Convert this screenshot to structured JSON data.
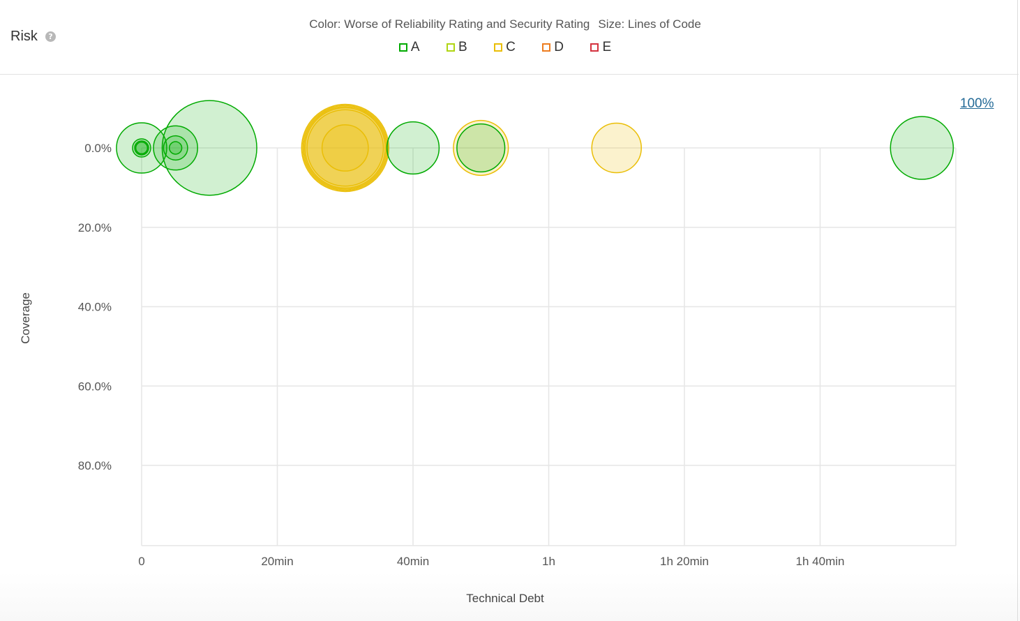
{
  "header": {
    "title": "Risk",
    "help_icon": "question-circle-icon",
    "color_label": "Color: Worse of Reliability Rating and Security Rating",
    "size_label": "Size: Lines of Code"
  },
  "legend": [
    {
      "label": "A",
      "color": "#00aa00",
      "fill": "#b0d513"
    },
    {
      "label": "B",
      "color": "#b0d513",
      "fill": "#b0d513"
    },
    {
      "label": "C",
      "color": "#eabe06",
      "fill": "#eabe06"
    },
    {
      "label": "D",
      "color": "#ed7d20",
      "fill": "#ed7d20"
    },
    {
      "label": "E",
      "color": "#d4333f",
      "fill": "#d4333f"
    }
  ],
  "zoom_link": "100%",
  "colors": {
    "A": "#00aa00",
    "B": "#b0d513",
    "C": "#eabe06",
    "D": "#ed7d20",
    "E": "#d4333f",
    "grid": "#e6e6e6"
  },
  "chart_data": {
    "type": "scatter",
    "xlabel": "Technical Debt",
    "ylabel": "Coverage",
    "xlim": [
      0,
      120
    ],
    "ylim": [
      0,
      100
    ],
    "y_reversed": true,
    "grid": true,
    "x_ticks": [
      {
        "value": 0,
        "label": "0"
      },
      {
        "value": 20,
        "label": "20min"
      },
      {
        "value": 40,
        "label": "40min"
      },
      {
        "value": 60,
        "label": "1h"
      },
      {
        "value": 80,
        "label": "1h 20min"
      },
      {
        "value": 100,
        "label": "1h 40min"
      }
    ],
    "y_ticks": [
      {
        "value": 0,
        "label": "0.0%"
      },
      {
        "value": 20,
        "label": "20.0%"
      },
      {
        "value": 40,
        "label": "40.0%"
      },
      {
        "value": 60,
        "label": "60.0%"
      },
      {
        "value": 80,
        "label": "80.0%"
      }
    ],
    "points": [
      {
        "x": 10,
        "y": 0,
        "rating": "A",
        "size": 4600
      },
      {
        "x": 0,
        "y": 0,
        "rating": "A",
        "size": 1300
      },
      {
        "x": 5,
        "y": 0,
        "rating": "A",
        "size": 1000
      },
      {
        "x": 5,
        "y": 0,
        "rating": "A",
        "size": 300
      },
      {
        "x": 5,
        "y": 0,
        "rating": "A",
        "size": 80
      },
      {
        "x": 0,
        "y": 0,
        "rating": "A",
        "size": 170
      },
      {
        "x": 0,
        "y": 0,
        "rating": "A",
        "size": 100
      },
      {
        "x": 0,
        "y": 0,
        "rating": "A",
        "size": 70
      },
      {
        "x": 30,
        "y": 0,
        "rating": "C",
        "size": 3900
      },
      {
        "x": 30,
        "y": 0,
        "rating": "C",
        "size": 3700
      },
      {
        "x": 30,
        "y": 0,
        "rating": "C",
        "size": 3500
      },
      {
        "x": 30,
        "y": 0,
        "rating": "C",
        "size": 3300
      },
      {
        "x": 30,
        "y": 0,
        "rating": "C",
        "size": 3000
      },
      {
        "x": 30,
        "y": 0,
        "rating": "C",
        "size": 1100
      },
      {
        "x": 40,
        "y": 0,
        "rating": "A",
        "size": 1400
      },
      {
        "x": 50,
        "y": 0,
        "rating": "C",
        "size": 1550
      },
      {
        "x": 50,
        "y": 0,
        "rating": "A",
        "size": 1180
      },
      {
        "x": 70,
        "y": 0,
        "rating": "C",
        "size": 1260
      },
      {
        "x": 115,
        "y": 0,
        "rating": "A",
        "size": 2030
      }
    ]
  }
}
